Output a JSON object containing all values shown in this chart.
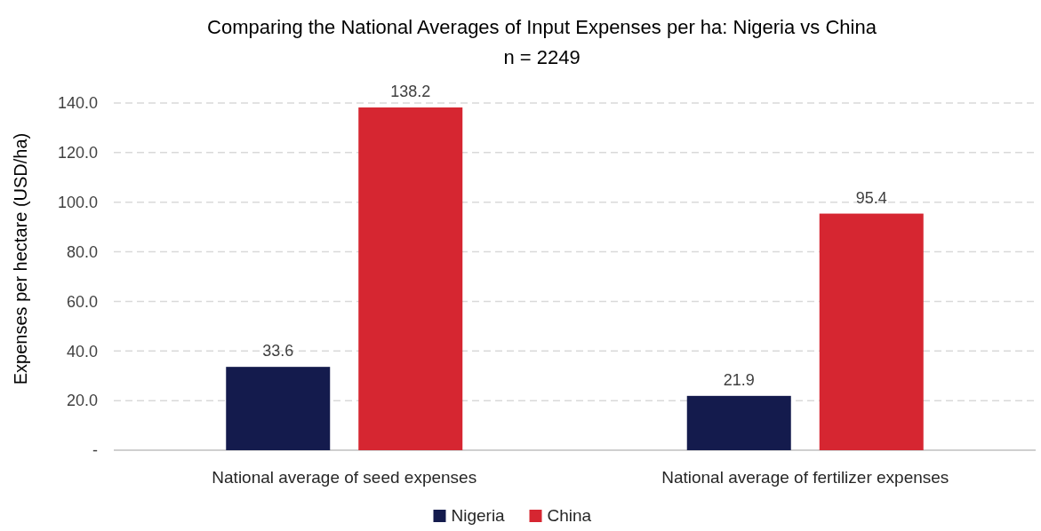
{
  "chart_data": {
    "type": "bar",
    "title": "Comparing the National Averages of Input Expenses per ha: Nigeria vs China",
    "subtitle": "n = 2249",
    "ylabel": "Expenses per hectare (USD/ha)",
    "categories": [
      "National average of seed expenses",
      "National average of fertilizer expenses"
    ],
    "series": [
      {
        "name": "Nigeria",
        "color": "#141b4d",
        "values": [
          33.6,
          21.9
        ]
      },
      {
        "name": "China",
        "color": "#d62631",
        "values": [
          138.2,
          95.4
        ]
      }
    ],
    "ylim": [
      0,
      140
    ],
    "yticks": [
      {
        "value": 0,
        "label": "-"
      },
      {
        "value": 20,
        "label": "20.0"
      },
      {
        "value": 40,
        "label": "40.0"
      },
      {
        "value": 60,
        "label": "60.0"
      },
      {
        "value": 80,
        "label": "80.0"
      },
      {
        "value": 100,
        "label": "100.0"
      },
      {
        "value": 120,
        "label": "120.0"
      },
      {
        "value": 140,
        "label": "140.0"
      }
    ],
    "grid": "y",
    "legend": "bottom",
    "data_labels": true
  }
}
